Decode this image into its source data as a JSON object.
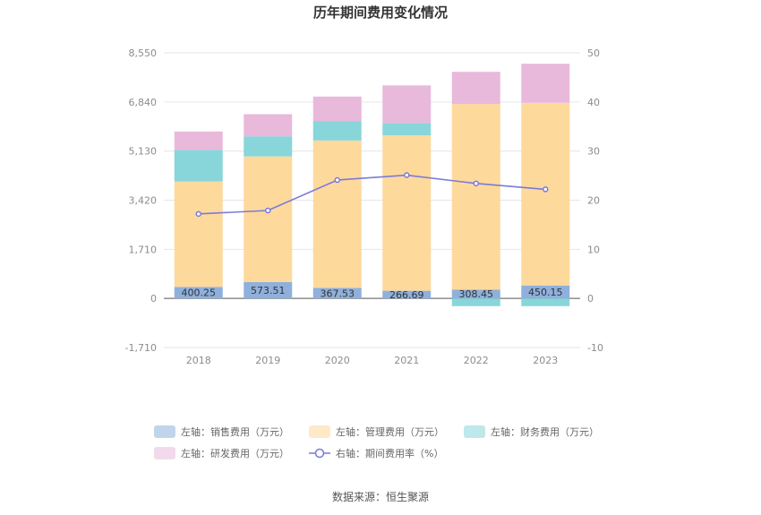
{
  "chart_data": {
    "type": "bar",
    "title": "历年期间费用变化情况",
    "categories": [
      "2018",
      "2019",
      "2020",
      "2021",
      "2022",
      "2023"
    ],
    "left_axis": {
      "ylim": [
        -1710,
        8550
      ],
      "ticks": [
        "8,550",
        "6,840",
        "5,130",
        "3,420",
        "1,710",
        "0",
        "-1,710"
      ],
      "tick_values": [
        8550,
        6840,
        5130,
        3420,
        1710,
        0,
        -1710
      ]
    },
    "right_axis": {
      "ylim": [
        -10,
        50
      ],
      "ticks": [
        "50",
        "40",
        "30",
        "20",
        "10",
        "0",
        "-10"
      ],
      "tick_values": [
        50,
        40,
        30,
        20,
        10,
        0,
        -10
      ]
    },
    "series": [
      {
        "name": "左轴：销售费用（万元）",
        "kind": "bar",
        "color": "#8fb0dc",
        "values": [
          400.25,
          573.51,
          367.53,
          266.69,
          308.45,
          450.15
        ],
        "labels": [
          "400.25",
          "573.51",
          "367.53",
          "266.69",
          "308.45",
          "450.15"
        ]
      },
      {
        "name": "左轴：管理费用（万元）",
        "kind": "bar",
        "color": "#fed99c",
        "values": [
          3670,
          4370,
          5130,
          5410,
          6460,
          6360
        ]
      },
      {
        "name": "左轴：财务费用（万元）",
        "kind": "bar",
        "color": "#88d6da",
        "values": [
          1100,
          700,
          680,
          430,
          -270,
          -270
        ]
      },
      {
        "name": "左轴：研发费用（万元）",
        "kind": "bar",
        "color": "#e8b9da",
        "values": [
          640,
          770,
          850,
          1310,
          1120,
          1360
        ]
      },
      {
        "name": "右轴：期间费用率（%）",
        "kind": "line",
        "color": "#7a7ad8",
        "values": [
          17.2,
          17.9,
          24.1,
          25.1,
          23.4,
          22.2
        ]
      }
    ],
    "grid": true,
    "legend_position": "bottom"
  },
  "source": "数据来源：恒生聚源"
}
